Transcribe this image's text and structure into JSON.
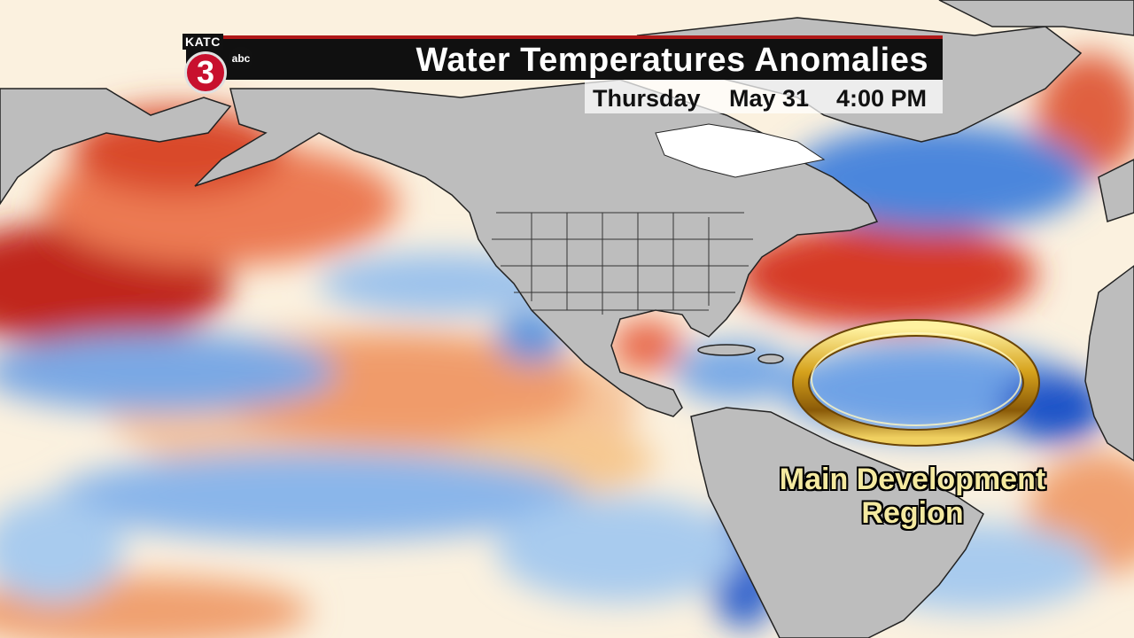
{
  "header": {
    "title": "Water Temperatures Anomalies",
    "day": "Thursday",
    "date": "May 31",
    "time": "4:00 PM"
  },
  "logo": {
    "station": "KATC",
    "channel": "3",
    "network": "abc"
  },
  "map": {
    "annotation_label": "Main Development Region",
    "annotation_label_line1": "Main Development",
    "annotation_label_line2": "Region",
    "legend_colors": {
      "warm_strong": "#c0281e",
      "warm": "#e86848",
      "warm_light": "#f6c890",
      "neutral": "#fdf6e8",
      "cool_light": "#a8cbee",
      "cool": "#5b95de",
      "cool_strong": "#1c52c8",
      "land": "#bdbdbd",
      "ice": "#ffffff"
    }
  }
}
